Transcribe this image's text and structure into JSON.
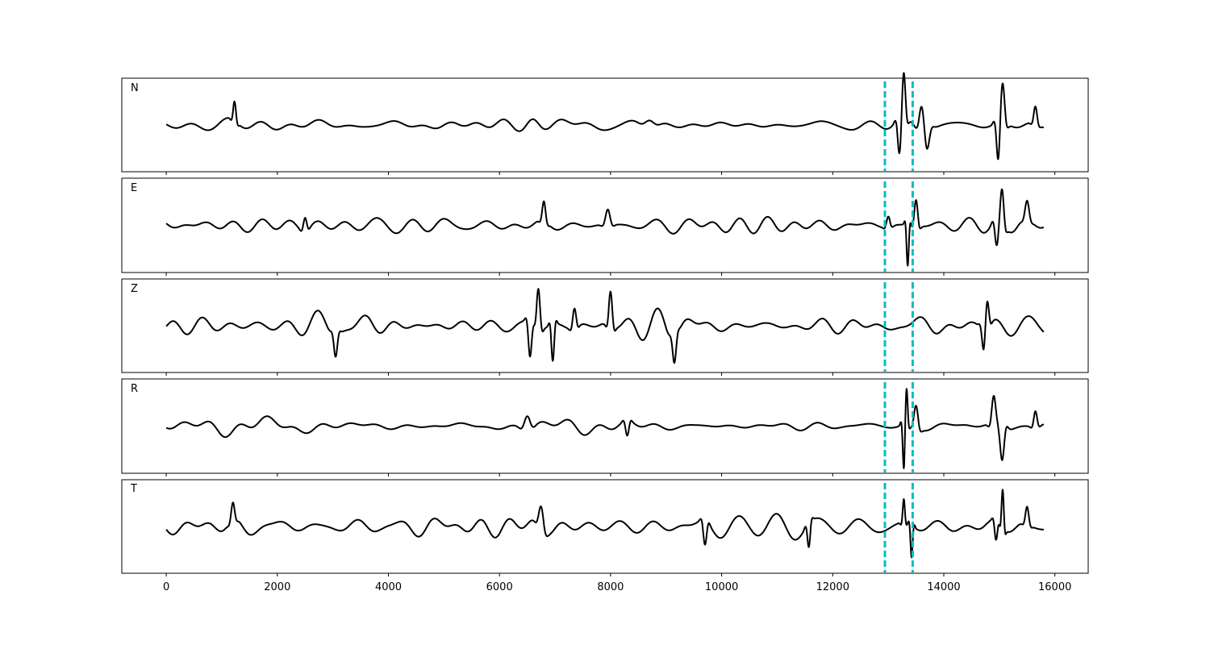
{
  "chart_data": {
    "type": "line",
    "xlim": [
      -800,
      16600
    ],
    "x_ticks": [
      0,
      2000,
      4000,
      6000,
      8000,
      10000,
      12000,
      14000,
      16000
    ],
    "x_tick_labels": [
      "0",
      "2000",
      "4000",
      "6000",
      "8000",
      "10000",
      "12000",
      "14000",
      "16000"
    ],
    "x_range": [
      0,
      15800
    ],
    "y_ticks_visible": false,
    "grid": false,
    "line_color": "#000000",
    "marker_color": "#00c0c0",
    "markers": [
      12940,
      13440
    ],
    "panels": [
      {
        "label": "N",
        "ylim": [
          -1.1,
          1.1
        ],
        "base_amp": 0.2,
        "bursts": [
          {
            "center": 1230,
            "width": 50,
            "amp": 0.45
          },
          {
            "center": 6600,
            "width": 200,
            "amp": 0.12
          },
          {
            "center": 8700,
            "width": 150,
            "amp": 0.15
          },
          {
            "center": 13280,
            "width": 60,
            "amp": 1.0
          },
          {
            "center": 13200,
            "width": 60,
            "amp": -0.7
          },
          {
            "center": 13600,
            "width": 80,
            "amp": 0.5
          },
          {
            "center": 13700,
            "width": 80,
            "amp": -0.4
          },
          {
            "center": 14980,
            "width": 60,
            "amp": -0.8
          },
          {
            "center": 15060,
            "width": 70,
            "amp": 0.85
          },
          {
            "center": 15650,
            "width": 60,
            "amp": 0.4
          }
        ]
      },
      {
        "label": "E",
        "ylim": [
          -1.1,
          1.1
        ],
        "base_amp": 0.25,
        "bursts": [
          {
            "center": 2500,
            "width": 60,
            "amp": 0.3
          },
          {
            "center": 6800,
            "width": 60,
            "amp": 0.45
          },
          {
            "center": 7950,
            "width": 80,
            "amp": 0.35
          },
          {
            "center": 13000,
            "width": 60,
            "amp": 0.25
          },
          {
            "center": 13350,
            "width": 40,
            "amp": -0.95
          },
          {
            "center": 13500,
            "width": 60,
            "amp": 0.6
          },
          {
            "center": 14950,
            "width": 60,
            "amp": -0.55
          },
          {
            "center": 15050,
            "width": 60,
            "amp": 0.75
          },
          {
            "center": 15500,
            "width": 70,
            "amp": 0.4
          }
        ]
      },
      {
        "label": "Z",
        "ylim": [
          -1.1,
          1.1
        ],
        "base_amp": 0.35,
        "bursts": [
          {
            "center": 3050,
            "width": 60,
            "amp": -0.5
          },
          {
            "center": 6550,
            "width": 60,
            "amp": -0.8
          },
          {
            "center": 6700,
            "width": 60,
            "amp": 0.9
          },
          {
            "center": 6960,
            "width": 50,
            "amp": -0.85
          },
          {
            "center": 7350,
            "width": 60,
            "amp": 0.45
          },
          {
            "center": 8000,
            "width": 60,
            "amp": 0.8
          },
          {
            "center": 9150,
            "width": 60,
            "amp": -0.55
          },
          {
            "center": 14720,
            "width": 60,
            "amp": -0.5
          },
          {
            "center": 14780,
            "width": 60,
            "amp": 0.55
          }
        ]
      },
      {
        "label": "R",
        "ylim": [
          -1.1,
          1.1
        ],
        "base_amp": 0.2,
        "bursts": [
          {
            "center": 6500,
            "width": 100,
            "amp": 0.3
          },
          {
            "center": 8300,
            "width": 60,
            "amp": -0.35
          },
          {
            "center": 13330,
            "width": 40,
            "amp": 0.75
          },
          {
            "center": 13280,
            "width": 40,
            "amp": -0.95
          },
          {
            "center": 13500,
            "width": 70,
            "amp": 0.5
          },
          {
            "center": 14900,
            "width": 70,
            "amp": 0.65
          },
          {
            "center": 15050,
            "width": 70,
            "amp": -0.75
          },
          {
            "center": 15650,
            "width": 60,
            "amp": 0.35
          }
        ]
      },
      {
        "label": "T",
        "ylim": [
          -1.1,
          1.1
        ],
        "base_amp": 0.35,
        "bursts": [
          {
            "center": 1200,
            "width": 60,
            "amp": 0.4
          },
          {
            "center": 6750,
            "width": 80,
            "amp": 0.5
          },
          {
            "center": 9700,
            "width": 60,
            "amp": -0.55
          },
          {
            "center": 11570,
            "width": 50,
            "amp": -0.55
          },
          {
            "center": 13280,
            "width": 40,
            "amp": 0.55
          },
          {
            "center": 13420,
            "width": 40,
            "amp": -0.75
          },
          {
            "center": 15060,
            "width": 40,
            "amp": 0.9
          },
          {
            "center": 14940,
            "width": 50,
            "amp": -0.45
          },
          {
            "center": 15500,
            "width": 60,
            "amp": 0.4
          }
        ]
      }
    ]
  }
}
